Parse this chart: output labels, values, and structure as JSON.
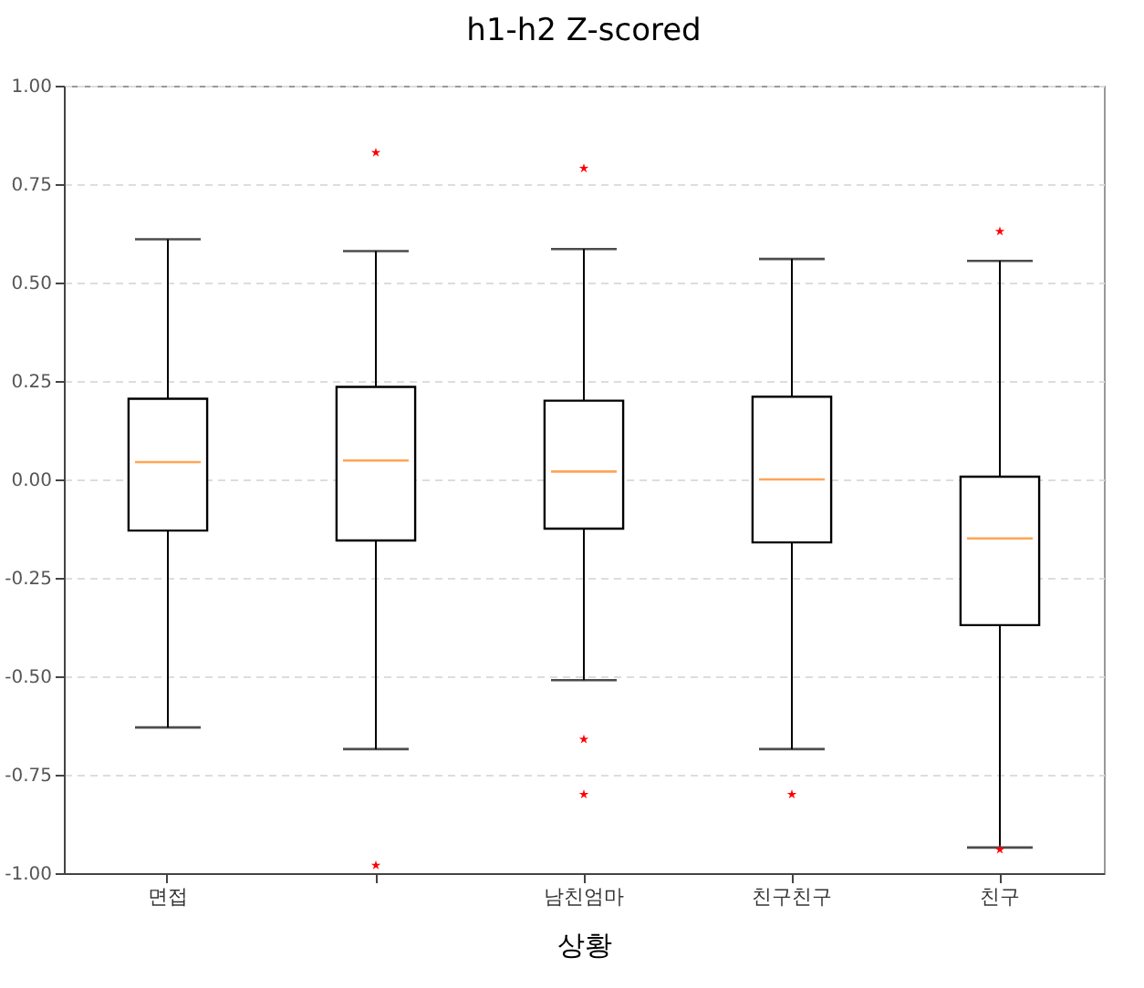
{
  "chart_data": {
    "type": "box",
    "title": "h1-h2 Z-scored",
    "xlabel": "상황",
    "categories": [
      "면접",
      null,
      "남친엄마",
      "친구친구",
      "친구"
    ],
    "boxes": [
      {
        "low": -0.63,
        "q1": -0.13,
        "median": 0.044,
        "q3": 0.205,
        "high": 0.61
      },
      {
        "low": -0.685,
        "q1": -0.155,
        "median": 0.048,
        "q3": 0.235,
        "high": 0.58,
        "outliers": [
          0.83,
          -0.98
        ]
      },
      {
        "low": -0.51,
        "q1": -0.125,
        "median": 0.02,
        "q3": 0.2,
        "high": 0.585,
        "outliers": [
          0.79,
          -0.66,
          -0.8
        ]
      },
      {
        "low": -0.685,
        "q1": -0.16,
        "median": 0.0,
        "q3": 0.21,
        "high": 0.56,
        "outliers": [
          -0.8
        ]
      },
      {
        "low": -0.935,
        "q1": -0.37,
        "median": -0.15,
        "q3": 0.007,
        "high": 0.555,
        "outliers": [
          0.63,
          -0.94
        ]
      }
    ],
    "ylim": [
      -1.0,
      1.0
    ],
    "yticks": [
      {
        "value": -1,
        "label": "-1.00"
      },
      {
        "value": -0.75,
        "label": "-0.75"
      },
      {
        "value": -0.5,
        "label": "-0.50"
      },
      {
        "value": -0.25,
        "label": "-0.25"
      },
      {
        "value": 0,
        "label": "0.00"
      },
      {
        "value": 0.25,
        "label": "0.25"
      },
      {
        "value": 0.5,
        "label": "0.50"
      },
      {
        "value": 0.75,
        "label": "0.75"
      },
      {
        "value": 1,
        "label": "1.00"
      }
    ],
    "grid": "y",
    "marker": "star"
  }
}
